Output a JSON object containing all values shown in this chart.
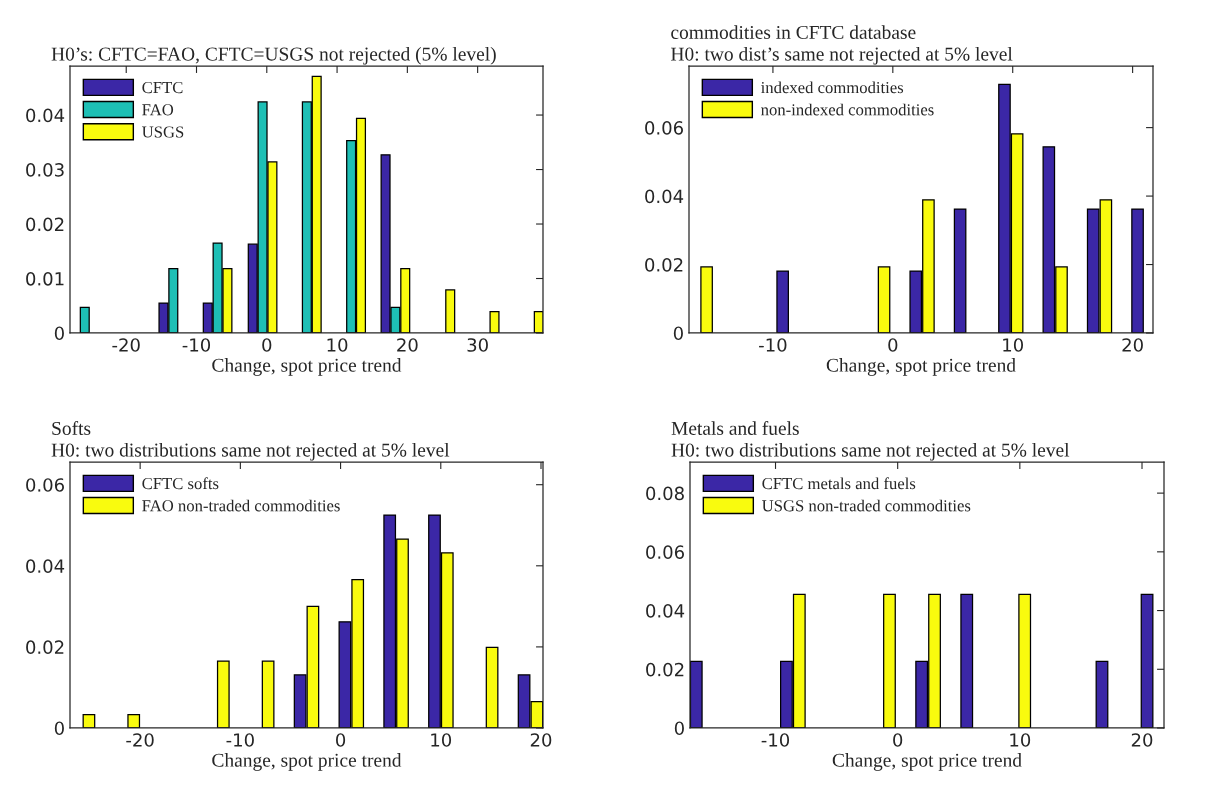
{
  "chart_data": [
    {
      "type": "bar",
      "title": "H0’s: CFTC=FAO, CFTC=USGS not rejected (5% level)",
      "xlabel": "Change, spot price trend",
      "x": [
        -25.9,
        -19.6,
        -13.3,
        -7.0,
        -0.6,
        5.7,
        12.0,
        18.3,
        24.7,
        31.0,
        37.3
      ],
      "series": [
        {
          "name": "CFTC",
          "color": "#3b27a6",
          "values": [
            0,
            0,
            0.0055,
            0.0055,
            0.0163,
            null,
            null,
            0.0327,
            0,
            0,
            0
          ]
        },
        {
          "name": "FAO",
          "color": "#1ebfb5",
          "values": [
            0.0047,
            0,
            0.0118,
            0.0165,
            0.0424,
            0.0424,
            0.0353,
            0.0047,
            0,
            0,
            0
          ]
        },
        {
          "name": "USGS",
          "color": "#f9fb0e",
          "values": [
            0,
            0,
            0,
            0.0118,
            0.0314,
            0.0471,
            0.0394,
            0.0118,
            0.0079,
            0.0039,
            0.0039
          ]
        }
      ],
      "xlim": [
        -28,
        39.3
      ],
      "ylim": [
        0,
        0.049
      ],
      "xticks": [
        -20,
        -10,
        0,
        10,
        20,
        30
      ],
      "yticks": [
        0,
        0.01,
        0.02,
        0.03,
        0.04
      ],
      "legend": "top left"
    },
    {
      "type": "bar",
      "title": "commodities in CFTC database",
      "subtitle": "H0: two dist’s same not rejected at 5% level",
      "xlabel": "Change, spot price trend",
      "x": [
        -16.06,
        -12.36,
        -8.66,
        -4.96,
        -1.26,
        2.44,
        6.14,
        9.84,
        13.54,
        17.24,
        20.94
      ],
      "series": [
        {
          "name": "indexed commodities",
          "color": "#3b27a6",
          "values": [
            0,
            0,
            0.0181,
            0,
            0,
            0.0181,
            0.0362,
            0.0726,
            0.0544,
            0.0362,
            0.0362
          ]
        },
        {
          "name": "non-indexed commodities",
          "color": "#f9fb0e",
          "values": [
            0.0193,
            0,
            0,
            0,
            0.0193,
            0.0389,
            null,
            0.0582,
            0.0193,
            0.0389,
            0
          ]
        }
      ],
      "xlim": [
        -17.0,
        21.7
      ],
      "ylim": [
        0,
        0.078
      ],
      "xticks": [
        -10,
        0,
        10,
        20
      ],
      "yticks": [
        0,
        0.02,
        0.04,
        0.06
      ],
      "legend": "top left"
    },
    {
      "type": "bar",
      "title": "Softs",
      "subtitle": "H0: two distributions same not rejected at 5% level",
      "xlabel": "Change, spot price trend",
      "x": [
        -25.75,
        -21.28,
        -16.81,
        -12.34,
        -7.87,
        -3.4,
        1.07,
        5.54,
        10.01,
        14.48,
        18.95
      ],
      "series": [
        {
          "name": "CFTC softs",
          "color": "#3b27a6",
          "values": [
            0,
            0,
            0,
            0,
            0,
            0.0131,
            0.0262,
            0.0525,
            0.0525,
            null,
            0.0131
          ]
        },
        {
          "name": "FAO non-traded commodities",
          "color": "#f9fb0e",
          "values": [
            0.0033,
            0.0033,
            0,
            0.0165,
            0.0165,
            0.03,
            0.0366,
            0.0466,
            0.0432,
            0.0199,
            0.0065
          ]
        }
      ],
      "xlim": [
        -27.0,
        20.2
      ],
      "ylim": [
        0,
        0.0656
      ],
      "xticks": [
        -20,
        -10,
        0,
        10,
        20
      ],
      "yticks": [
        0,
        0.02,
        0.04,
        0.06
      ],
      "legend": "top left"
    },
    {
      "type": "bar",
      "title": "Metals and fuels",
      "subtitle": "H0: two distributions same not rejected at 5% level",
      "xlabel": "Change, spot price trend",
      "x": [
        -15.96,
        -12.27,
        -8.58,
        -4.89,
        -1.2,
        2.49,
        6.18,
        9.87,
        13.56,
        17.25,
        20.94
      ],
      "series": [
        {
          "name": "CFTC metals and fuels",
          "color": "#3b27a6",
          "values": [
            0.0227,
            0,
            0.0227,
            0,
            0,
            0.0227,
            0.0455,
            null,
            0,
            0.0227,
            0.0455
          ]
        },
        {
          "name": "USGS non-traded commodities",
          "color": "#f9fb0e",
          "values": [
            0,
            0,
            0.0455,
            0,
            0.0455,
            0.0455,
            null,
            0.0455,
            0,
            0,
            0
          ]
        }
      ],
      "xlim": [
        -17.0,
        21.8
      ],
      "ylim": [
        0,
        0.0906
      ],
      "xticks": [
        -10,
        0,
        10,
        20
      ],
      "yticks": [
        0,
        0.02,
        0.04,
        0.06,
        0.08
      ],
      "legend": "top left"
    }
  ]
}
